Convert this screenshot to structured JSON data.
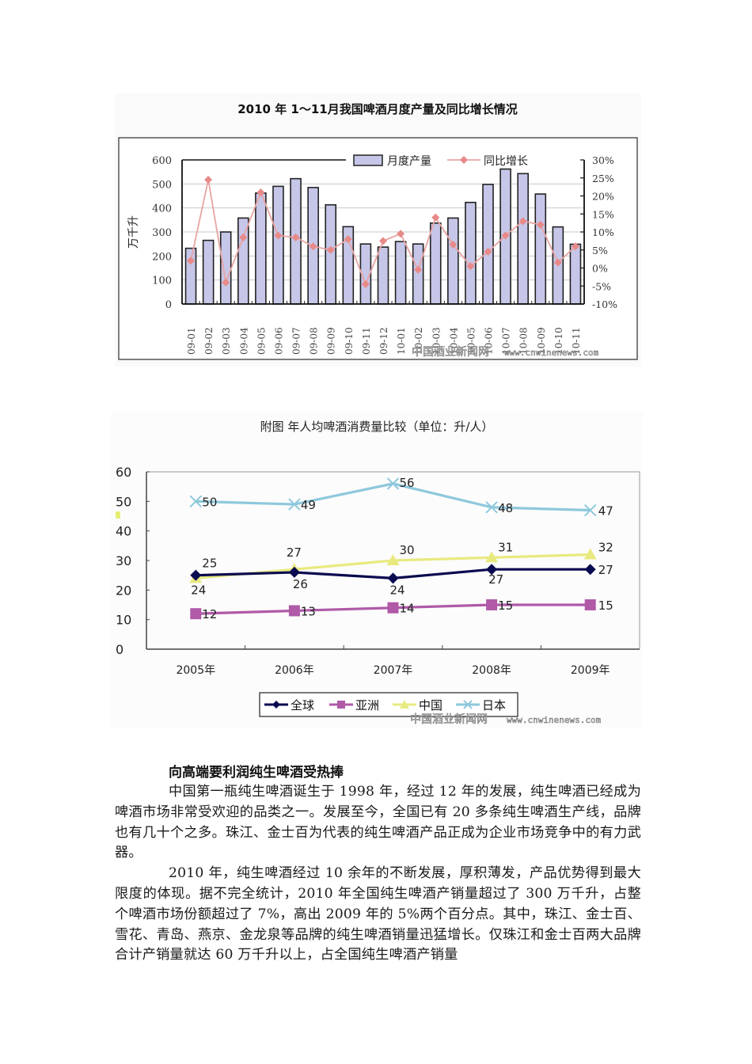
{
  "chart_data": [
    {
      "type": "bar",
      "title": "2010 年 1～11月我国啤酒月度产量及同比增长情况",
      "xlabel": "",
      "ylabel": "万千升",
      "ylabel_right": "",
      "categories": [
        "09-01",
        "09-02",
        "09-03",
        "09-04",
        "09-05",
        "09-06",
        "09-07",
        "09-08",
        "09-09",
        "09-10",
        "09-11",
        "09-12",
        "10-01",
        "10-02",
        "10-03",
        "10-04",
        "10-05",
        "10-06",
        "10-07",
        "10-08",
        "10-09",
        "10-10",
        "10-11"
      ],
      "series": [
        {
          "name": "月度产量",
          "type": "bar",
          "axis": "left",
          "color": "#c8c8e6",
          "values": [
            232,
            265,
            300,
            358,
            462,
            490,
            522,
            485,
            413,
            322,
            250,
            237,
            260,
            250,
            337,
            358,
            423,
            498,
            562,
            543,
            458,
            321,
            249
          ]
        },
        {
          "name": "同比增长",
          "type": "line",
          "axis": "right",
          "color": "#e8908e",
          "values": [
            2,
            24.5,
            -4,
            8.5,
            21,
            9,
            8.5,
            6,
            5,
            8,
            -4.5,
            7.5,
            9.5,
            -0.5,
            14,
            6.5,
            0.5,
            4.5,
            9,
            13,
            12,
            1.5,
            6
          ]
        }
      ],
      "ylim": [
        0,
        600
      ],
      "yticks": [
        "0",
        "100",
        "200",
        "300",
        "400",
        "500",
        "600"
      ],
      "ylim_right": [
        -10,
        30
      ],
      "yticks_right": [
        "-10%",
        "-5%",
        "0%",
        "5%",
        "10%",
        "15%",
        "20%",
        "25%",
        "30%"
      ],
      "grid": true,
      "legend_position": "top-right",
      "watermark": "中国酒业新闻网 www.cnwinenews.com"
    },
    {
      "type": "line",
      "title": "附图  年人均啤酒消费量比较（单位：升/人）",
      "xlabel": "",
      "ylabel": "",
      "categories": [
        "2005年",
        "2006年",
        "2007年",
        "2008年",
        "2009年"
      ],
      "series": [
        {
          "name": "全球",
          "color": "#0a0a50",
          "marker": "diamond",
          "values": [
            25,
            26,
            24,
            27,
            27
          ]
        },
        {
          "name": "亚洲",
          "color": "#b05aa8",
          "marker": "square",
          "values": [
            12,
            13,
            14,
            15,
            15
          ]
        },
        {
          "name": "中国",
          "color": "#e8ea80",
          "marker": "triangle",
          "values": [
            24,
            27,
            30,
            31,
            32
          ]
        },
        {
          "name": "日本",
          "color": "#8ec8dc",
          "marker": "x",
          "values": [
            50,
            49,
            56,
            48,
            47
          ]
        }
      ],
      "ylim": [
        0,
        60
      ],
      "yticks": [
        "0",
        "10",
        "20",
        "30",
        "40",
        "50",
        "60"
      ],
      "grid": false,
      "legend_position": "bottom",
      "watermark": "中国酒业新闻网 www.cnwinenews.com"
    }
  ],
  "chart1": {
    "title": "2010 年 1～11月我国啤酒月度产量及同比增长情况",
    "ylabel": "万千升",
    "legend_bar": "月度产量",
    "legend_line": "同比增长",
    "watermark_cn": "中国酒业新闻网",
    "watermark_url": "www.cnwinenews.com"
  },
  "chart2": {
    "title": "附图  年人均啤酒消费量比较（单位：升/人）",
    "watermark_cn": "中国酒业新闻网",
    "watermark_url": "www.cnwinenews.com"
  },
  "article": {
    "heading": "向高端要利润纯生啤酒受热捧",
    "paragraphs": [
      "中国第一瓶纯生啤酒诞生于 1998 年，经过 12 年的发展，纯生啤酒已经成为啤酒市场非常受欢迎的品类之一。发展至今，全国已有 20 多条纯生啤酒生产线，品牌也有几十个之多。珠江、金士百为代表的纯生啤酒产品正成为企业市场竞争中的有力武器。",
      "2010 年，纯生啤酒经过 10 余年的不断发展，厚积薄发，产品优势得到最大限度的体现。据不完全统计，2010 年全国纯生啤酒产销量超过了 300 万千升，占整个啤酒市场份额超过了 7%，高出 2009 年的 5%两个百分点。其中，珠江、金士百、雪花、青岛、燕京、金龙泉等品牌的纯生啤酒销量迅猛增长。仅珠江和金士百两大品牌合计产销量就达 60 万千升以上，占全国纯生啤酒产销量"
    ]
  }
}
